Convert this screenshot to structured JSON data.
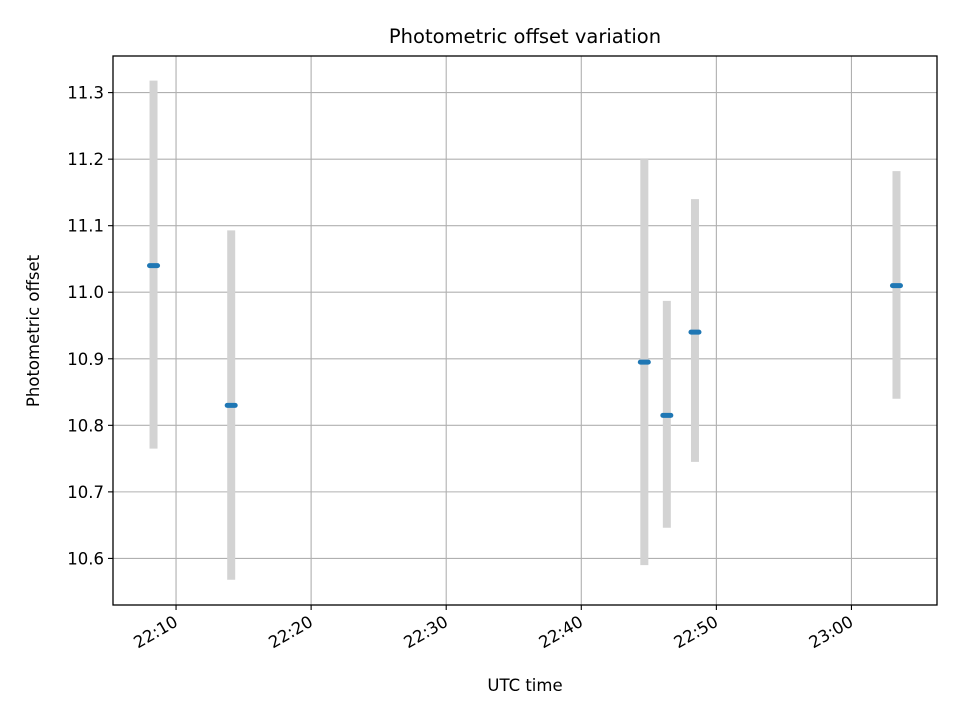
{
  "chart_data": {
    "type": "scatter",
    "title": "Photometric offset variation",
    "xlabel": "UTC time",
    "ylabel": "Photometric offset",
    "x_ticks": [
      "22:10",
      "22:20",
      "22:30",
      "22:40",
      "22:50",
      "23:00"
    ],
    "y_ticks": [
      "10.6",
      "10.7",
      "10.8",
      "10.9",
      "11.0",
      "11.1",
      "11.2",
      "11.3"
    ],
    "x_tick_values": [
      "22:10",
      "22:20",
      "22:30",
      "22:40",
      "22:50",
      "23:00"
    ],
    "y_tick_values": [
      10.6,
      10.7,
      10.8,
      10.9,
      11.0,
      11.1,
      11.2,
      11.3
    ],
    "xlim": [
      "22:05:20",
      "23:06:20"
    ],
    "ylim": [
      10.53,
      11.355
    ],
    "grid": true,
    "colors": {
      "points": "#1f77b4",
      "error_bars": "#d3d3d3",
      "grid": "#b0b0b0",
      "axes": "#000000"
    },
    "series": [
      {
        "x": [
          "22:08:20",
          "22:14:05",
          "22:44:40",
          "22:46:20",
          "22:48:25",
          "23:03:20"
        ],
        "y": [
          11.04,
          10.83,
          10.895,
          10.815,
          10.94,
          11.01
        ],
        "error_low": [
          10.765,
          10.568,
          10.59,
          10.646,
          10.745,
          10.84
        ],
        "error_high": [
          11.318,
          11.093,
          11.2,
          10.987,
          11.14,
          11.182
        ]
      }
    ]
  }
}
